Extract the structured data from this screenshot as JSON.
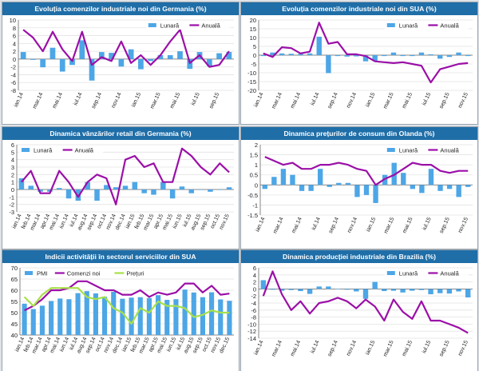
{
  "chart_data": [
    {
      "type": "bar+line",
      "title": "Evoluția comenzilor industriale noi din Germania (%)",
      "categories": [
        "ian.14",
        "feb.14",
        "mar.14",
        "apr.14",
        "mai.14",
        "iun.14",
        "iul.14",
        "aug.14",
        "sep.14",
        "oct.14",
        "nov.14",
        "dec.14",
        "ian.15",
        "feb.15",
        "mar.15",
        "apr.15",
        "mai.15",
        "iun.15",
        "iul.15",
        "aug.15",
        "sep.15",
        "oct.15"
      ],
      "xticks": [
        "ian.14",
        "mar.14",
        "mai.14",
        "iul.14",
        "sep.14",
        "nov.14",
        "ian.15",
        "mar.15",
        "mai.15",
        "iul.15",
        "sep.15"
      ],
      "ylim": [
        -8,
        10
      ],
      "yticks": [
        -8,
        -6,
        -4,
        -2,
        0,
        2,
        4,
        6,
        8,
        10
      ],
      "legend": "top-right",
      "series": [
        {
          "name": "Lunară",
          "kind": "bar",
          "color": "#4da6e6",
          "values": [
            1.8,
            -0.2,
            -2.1,
            2.9,
            -3.2,
            -1.5,
            4.8,
            -5.5,
            1.8,
            1.6,
            -1.9,
            2.5,
            -2.6,
            -0.5,
            1.0,
            1.0,
            2.0,
            -2.5,
            1.8,
            -1.8,
            1.5,
            1.8
          ]
        },
        {
          "name": "Anuală",
          "kind": "line",
          "color": "#9b0fa8",
          "values": [
            7.5,
            5.5,
            2.0,
            7.0,
            2.5,
            -0.5,
            7.0,
            -1.5,
            0.5,
            -0.5,
            4.5,
            -1.0,
            1.0,
            -1.5,
            1.0,
            4.5,
            7.5,
            -1.0,
            1.0,
            -2.0,
            -1.5,
            2.0
          ]
        }
      ]
    },
    {
      "type": "bar+line",
      "title": "Evoluția comenzilor industriale noi din SUA (%)",
      "categories": [
        "ian.14",
        "feb.14",
        "mar.14",
        "apr.14",
        "mai.14",
        "iun.14",
        "iul.14",
        "aug.14",
        "sep.14",
        "oct.14",
        "nov.14",
        "dec.14",
        "ian.15",
        "feb.15",
        "mar.15",
        "apr.15",
        "mai.15",
        "iun.15",
        "iul.15",
        "aug.15",
        "sep.15",
        "oct.15",
        "nov.15"
      ],
      "xticks": [
        "ian.14",
        "mar.14",
        "mai.14",
        "iul.14",
        "sep.14",
        "nov.14",
        "ian.15",
        "mar.15",
        "mai.15",
        "iul.15",
        "sep.15",
        "nov.15"
      ],
      "ylim": [
        -20,
        20
      ],
      "yticks": [
        -20,
        -15,
        -10,
        -5,
        0,
        5,
        10,
        15,
        20
      ],
      "legend": "top-right",
      "series": [
        {
          "name": "Lunară",
          "kind": "bar",
          "color": "#4da6e6",
          "values": [
            -0.5,
            1.5,
            1.0,
            0.8,
            0.7,
            1.0,
            10.5,
            -10.2,
            -0.5,
            -0.8,
            -0.7,
            -3.5,
            -3.4,
            -0.5,
            1.5,
            -0.5,
            -0.5,
            1.5,
            0.5,
            -2.0,
            -1.0,
            1.5,
            -0.5
          ]
        },
        {
          "name": "Anuală",
          "kind": "line",
          "color": "#9b0fa8",
          "values": [
            1.0,
            -1.0,
            4.5,
            4.0,
            1.0,
            2.0,
            18.5,
            6.5,
            7.5,
            0.5,
            0.5,
            -0.5,
            -3.5,
            -4.0,
            -4.5,
            -4.0,
            -5.0,
            -6.0,
            -15.5,
            -8.0,
            -6.5,
            -5.0,
            -4.5
          ]
        }
      ]
    },
    {
      "type": "bar+line",
      "title": "Dinamica vânzărilor retail din Germania (%)",
      "categories": [
        "ian.14",
        "feb.14",
        "mar.14",
        "apr.14",
        "mai.14",
        "iun.14",
        "iul.14",
        "aug.14",
        "sep.14",
        "oct.14",
        "nov.14",
        "dec.14",
        "ian.15",
        "feb.15",
        "mar.15",
        "apr.15",
        "mai.15",
        "iun.15",
        "iul.15",
        "aug.15",
        "sep.15",
        "oct.15",
        "nov.15"
      ],
      "xticks": [
        "ian.14",
        "feb.14",
        "mar.14",
        "apr.14",
        "mai.14",
        "iun.14",
        "iul.14",
        "aug.14",
        "sep.14",
        "oct.14",
        "nov.14",
        "dec.14",
        "ian.15",
        "feb.15",
        "mar.15",
        "apr.15",
        "mai.15",
        "iun.15",
        "iul.15",
        "aug.15",
        "sep.15",
        "oct.15",
        "nov.15"
      ],
      "ylim": [
        -3,
        6
      ],
      "yticks": [
        -3,
        -2,
        -1,
        0,
        1,
        2,
        3,
        4,
        5,
        6
      ],
      "legend": "top-left",
      "series": [
        {
          "name": "Lunară",
          "kind": "bar",
          "color": "#4da6e6",
          "values": [
            1.5,
            0.5,
            -0.3,
            -0.3,
            0.2,
            -1.2,
            -1.5,
            1.0,
            -1.5,
            0.6,
            0.3,
            0.5,
            1.0,
            -0.5,
            -0.7,
            1.0,
            -1.2,
            0.4,
            -0.5,
            0.0,
            -0.3,
            0.0,
            0.3
          ]
        },
        {
          "name": "Anuală",
          "kind": "line",
          "color": "#9b0fa8",
          "values": [
            1.0,
            2.5,
            -0.5,
            -0.5,
            2.5,
            1.0,
            -1.0,
            1.0,
            2.0,
            1.5,
            -2.0,
            4.0,
            4.5,
            3.0,
            3.5,
            1.0,
            1.0,
            5.5,
            4.5,
            3.0,
            2.0,
            3.5,
            2.3
          ]
        }
      ]
    },
    {
      "type": "bar+line",
      "title": "Dinamica prețurilor de consum din Olanda (%)",
      "categories": [
        "ian.14",
        "feb.14",
        "mar.14",
        "apr.14",
        "mai.14",
        "iun.14",
        "iul.14",
        "aug.14",
        "sep.14",
        "oct.14",
        "nov.14",
        "dec.14",
        "ian.15",
        "feb.15",
        "mar.15",
        "apr.15",
        "mai.15",
        "iun.15",
        "iul.15",
        "aug.15",
        "sep.15",
        "oct.15",
        "nov.15"
      ],
      "xticks": [
        "ian.14",
        "mar.14",
        "mai.14",
        "iul.14",
        "sep.14",
        "nov.14",
        "ian.15",
        "mar.15",
        "mai.15",
        "iul.15",
        "sep.15",
        "nov.15"
      ],
      "ylim": [
        -1.5,
        2.0
      ],
      "yticks": [
        -1.5,
        -1,
        -0.5,
        0,
        0.5,
        1,
        1.5,
        2
      ],
      "legend": "top-right",
      "series": [
        {
          "name": "Lunară",
          "kind": "bar",
          "color": "#4da6e6",
          "values": [
            -0.2,
            0.4,
            0.8,
            0.5,
            -0.3,
            -0.3,
            0.8,
            -0.1,
            0.1,
            0.1,
            -0.6,
            -0.5,
            -0.9,
            0.5,
            1.1,
            0.6,
            -0.2,
            -0.4,
            0.8,
            -0.3,
            -0.2,
            -0.6,
            -0.1
          ]
        },
        {
          "name": "Anuală",
          "kind": "line",
          "color": "#9b0fa8",
          "values": [
            1.4,
            1.2,
            1.0,
            1.1,
            0.8,
            0.8,
            1.0,
            1.0,
            1.1,
            1.0,
            0.8,
            0.7,
            0.0,
            0.3,
            0.5,
            0.8,
            1.1,
            1.0,
            1.0,
            0.7,
            0.6,
            0.7,
            0.7
          ]
        }
      ]
    },
    {
      "type": "bar+line",
      "title": "Indicii activității în sectorul serviciilor din SUA",
      "categories": [
        "ian.14",
        "feb.14",
        "mar.14",
        "apr.14",
        "mai.14",
        "iun.14",
        "iul.14",
        "aug.14",
        "sep.14",
        "oct.14",
        "nov.14",
        "dec.14",
        "ian.15",
        "feb.15",
        "mar.15",
        "apr.15",
        "mai.15",
        "iun.15",
        "iul.15",
        "aug.15",
        "sep.15",
        "oct.15",
        "nov.15",
        "dec.15"
      ],
      "xticks": [
        "ian.14",
        "feb.14",
        "mar.14",
        "apr.14",
        "mai.14",
        "iun.14",
        "iul.14",
        "aug.14",
        "sep.14",
        "oct.14",
        "nov.14",
        "dec.14",
        "ian.15",
        "feb.15",
        "mar.15",
        "apr.15",
        "mai.15",
        "iun.15",
        "iul.15",
        "aug.15",
        "sep.15",
        "oct.15",
        "nov.15",
        "dec.15"
      ],
      "ylim": [
        40,
        70
      ],
      "yticks": [
        40,
        45,
        50,
        55,
        60,
        65,
        70
      ],
      "legend": "top-left",
      "series": [
        {
          "name": "PMI",
          "kind": "bar",
          "color": "#4da6e6",
          "values": [
            54.0,
            51.6,
            53.1,
            55.2,
            56.3,
            56.0,
            58.7,
            59.6,
            58.6,
            57.1,
            59.3,
            56.2,
            56.7,
            56.9,
            56.5,
            57.8,
            55.7,
            56.0,
            60.3,
            59.0,
            56.9,
            59.1,
            55.9,
            55.3
          ]
        },
        {
          "name": "Comenzi noi",
          "kind": "line",
          "color": "#9b0fa8",
          "values": [
            51,
            53,
            56,
            60,
            60,
            61,
            64,
            64,
            62,
            60,
            60,
            58,
            58,
            60,
            57,
            59,
            58,
            59,
            63,
            63,
            59,
            62,
            58,
            58.5
          ]
        },
        {
          "name": "Prețuri",
          "kind": "line",
          "color": "#a8e04a",
          "values": [
            57,
            53,
            58,
            61,
            61,
            61,
            61,
            57,
            56,
            57,
            52,
            50,
            45,
            52,
            50,
            55,
            53,
            53,
            52,
            48,
            49,
            51,
            50,
            50
          ]
        }
      ]
    },
    {
      "type": "bar+line",
      "title": "Dinamica producției industriale din Brazilia (%)",
      "categories": [
        "ian.14",
        "feb.14",
        "mar.14",
        "apr.14",
        "mai.14",
        "iun.14",
        "iul.14",
        "aug.14",
        "sep.14",
        "oct.14",
        "nov.14",
        "dec.14",
        "ian.15",
        "feb.15",
        "mar.15",
        "apr.15",
        "mai.15",
        "iun.15",
        "iul.15",
        "aug.15",
        "sep.15",
        "oct.15",
        "nov.15"
      ],
      "xticks": [
        "ian.14",
        "mar.14",
        "mai.14",
        "iul.14",
        "sep.14",
        "nov.14",
        "ian.15",
        "mar.15",
        "mai.15",
        "iul.15",
        "sep.15",
        "nov.15"
      ],
      "ylim": [
        -14,
        6
      ],
      "yticks": [
        -14,
        -12,
        -10,
        -8,
        -6,
        -4,
        -2,
        0,
        2,
        4,
        6
      ],
      "legend": "top-right",
      "series": [
        {
          "name": "Lunară",
          "kind": "bar",
          "color": "#4da6e6",
          "values": [
            2.5,
            -0.2,
            -0.5,
            -0.3,
            -0.6,
            -1.4,
            0.7,
            0.7,
            0.1,
            -0.2,
            -0.7,
            -2.8,
            2.0,
            -0.6,
            -0.5,
            -1.0,
            -0.5,
            -0.3,
            -1.5,
            -1.2,
            -1.3,
            -0.7,
            -2.4
          ]
        },
        {
          "name": "Anuală",
          "kind": "line",
          "color": "#9b0fa8",
          "values": [
            -2.0,
            5.0,
            -1.5,
            -6.0,
            -3.5,
            -7.0,
            -4.0,
            -3.5,
            -2.5,
            -3.5,
            -5.5,
            -3.0,
            -5.0,
            -9.0,
            -3.0,
            -6.5,
            -8.5,
            -3.5,
            -9.0,
            -9.0,
            -10.0,
            -11.0,
            -12.5
          ]
        }
      ]
    }
  ]
}
